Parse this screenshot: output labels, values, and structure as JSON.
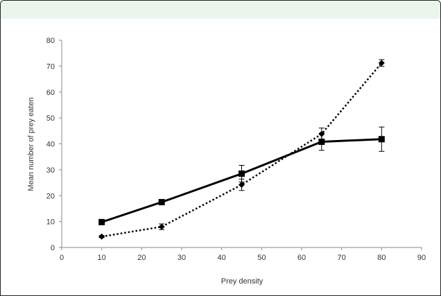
{
  "chart_data": {
    "type": "line",
    "xlabel": "Prey density",
    "ylabel": "Mean number of prey eaten",
    "xlim": [
      0,
      90
    ],
    "ylim": [
      0,
      80
    ],
    "x_ticks": [
      "0",
      "10",
      "20",
      "30",
      "40",
      "50",
      "60",
      "70",
      "80",
      "90"
    ],
    "y_ticks": [
      "0",
      "10",
      "20",
      "30",
      "40",
      "50",
      "60",
      "70",
      "80"
    ],
    "grid": false,
    "series": [
      {
        "marker": "square",
        "line_style": "solid",
        "color": "#000000",
        "x": [
          10,
          25,
          45,
          65,
          80
        ],
        "y": [
          9.8,
          17.5,
          28.5,
          40.8,
          41.8
        ],
        "error": [
          0.5,
          0.8,
          3.2,
          3.3,
          4.7
        ]
      },
      {
        "marker": "diamond",
        "line_style": "dotted",
        "color": "#000000",
        "x": [
          10,
          25,
          45,
          65,
          80
        ],
        "y": [
          4.2,
          8.0,
          24.2,
          43.8,
          71.2
        ],
        "error": [
          0.4,
          1.1,
          2.2,
          2.3,
          1.3
        ]
      }
    ]
  }
}
